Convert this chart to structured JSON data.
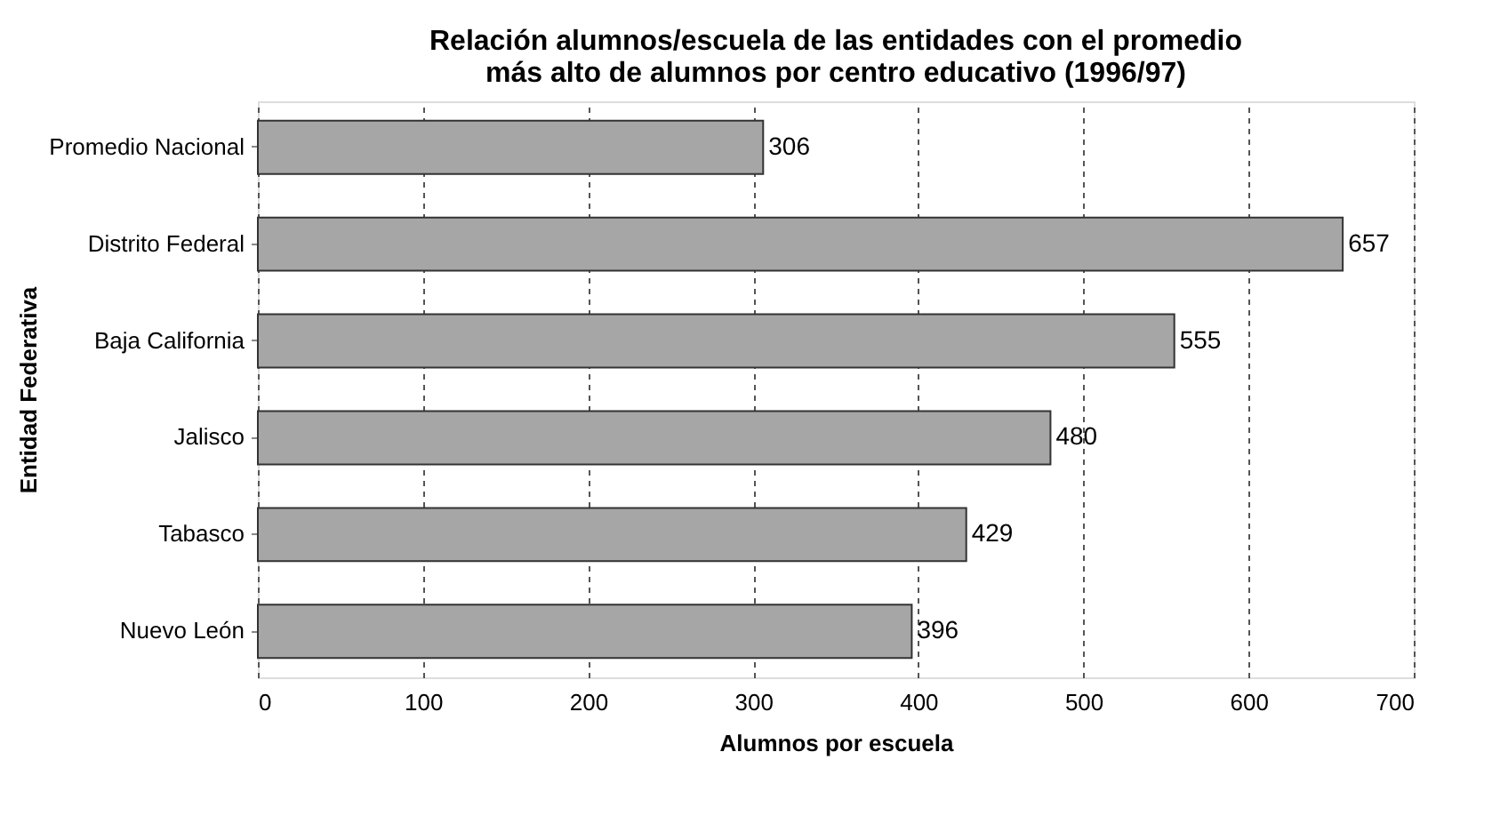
{
  "chart_data": {
    "type": "bar",
    "orientation": "horizontal",
    "title": "Relación alumnos/escuela de las entidades con el promedio\nmás alto de alumnos por centro educativo (1996/97)",
    "xlabel": "Alumnos por escuela",
    "ylabel": "Entidad Federativa",
    "categories": [
      "Promedio Nacional",
      "Distrito Federal",
      "Baja California",
      "Jalisco",
      "Tabasco",
      "Nuevo León"
    ],
    "values": [
      306,
      657,
      555,
      480,
      429,
      396
    ],
    "color": "#a6a6a6",
    "data_labels": true,
    "xlim": [
      0,
      700
    ],
    "xticks": [
      0,
      100,
      200,
      300,
      400,
      500,
      600,
      700
    ],
    "grid": "x"
  }
}
